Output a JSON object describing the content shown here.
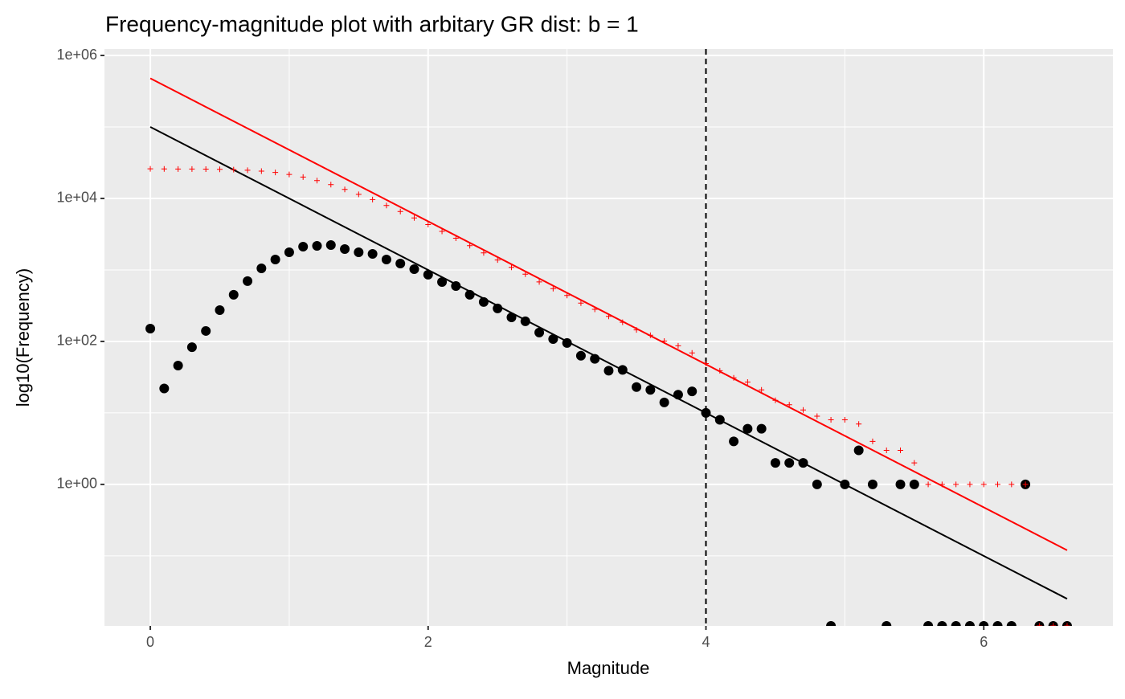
{
  "chart_data": {
    "type": "scatter",
    "title": "Frequency-magnitude plot with arbitary GR dist: b = 1",
    "xlabel": "Magnitude",
    "ylabel": "log10(Frequency)",
    "xlim": [
      -0.33,
      6.93
    ],
    "xticks": [
      0,
      2,
      4,
      6
    ],
    "xminor": [
      1,
      3,
      5
    ],
    "ylim": [
      0.0105,
      1230000
    ],
    "log_y": true,
    "yticks": [
      {
        "value": 1000000,
        "label": "1e+06"
      },
      {
        "value": 10000,
        "label": "1e+04"
      },
      {
        "value": 100,
        "label": "1e+02"
      },
      {
        "value": 1,
        "label": "1e+00"
      }
    ],
    "yminor": [
      100000,
      1000,
      10,
      0.1
    ],
    "grid": true,
    "vline": 4,
    "series": [
      {
        "mark": "point",
        "color": "#000000",
        "x": [
          0,
          0.1,
          0.2,
          0.3,
          0.4,
          0.5,
          0.6,
          0.7,
          0.8,
          0.9,
          1.0,
          1.1,
          1.2,
          1.3,
          1.4,
          1.5,
          1.6,
          1.7,
          1.8,
          1.9,
          2.0,
          2.1,
          2.2,
          2.3,
          2.4,
          2.5,
          2.6,
          2.7,
          2.8,
          2.9,
          3.0,
          3.1,
          3.2,
          3.3,
          3.4,
          3.5,
          3.6,
          3.7,
          3.8,
          3.9,
          4.0,
          4.1,
          4.2,
          4.3,
          4.4,
          4.5,
          4.6,
          4.7,
          4.8,
          4.9,
          5.0,
          5.1,
          5.2,
          5.3,
          5.4,
          5.5,
          5.6,
          5.7,
          5.8,
          5.9,
          6.0,
          6.1,
          6.2,
          6.3,
          6.4,
          6.5,
          6.6
        ],
        "values": [
          151,
          22,
          46,
          83,
          140,
          274,
          449,
          697,
          1053,
          1400,
          1766,
          2117,
          2173,
          2230,
          1960,
          1766,
          1678,
          1400,
          1230,
          1026,
          857,
          678,
          596,
          449,
          356,
          289,
          217,
          191,
          133,
          108,
          95,
          63,
          57,
          39,
          40,
          23,
          21,
          14,
          18,
          20,
          10,
          8,
          4,
          6,
          6,
          2,
          2,
          2,
          1,
          0,
          1,
          3,
          1,
          0,
          1,
          1,
          0,
          0,
          0,
          0,
          0,
          0,
          0,
          1,
          0,
          0,
          0
        ]
      },
      {
        "mark": "cross",
        "color": "#ff0000",
        "x": [
          0,
          0.1,
          0.2,
          0.3,
          0.4,
          0.5,
          0.6,
          0.7,
          0.8,
          0.9,
          1.0,
          1.1,
          1.2,
          1.3,
          1.4,
          1.5,
          1.6,
          1.7,
          1.8,
          1.9,
          2.0,
          2.1,
          2.2,
          2.3,
          2.4,
          2.5,
          2.6,
          2.7,
          2.8,
          2.9,
          3.0,
          3.1,
          3.2,
          3.3,
          3.4,
          3.5,
          3.6,
          3.7,
          3.8,
          3.9,
          4.0,
          4.1,
          4.2,
          4.3,
          4.4,
          4.5,
          4.6,
          4.7,
          4.8,
          4.9,
          5.0,
          5.1,
          5.2,
          5.3,
          5.4,
          5.5,
          5.6,
          5.7,
          5.8,
          5.9,
          6.0,
          6.1,
          6.2,
          6.3,
          6.4,
          6.5,
          6.6
        ],
        "values": [
          25974,
          25823,
          25801,
          25755,
          25672,
          25532,
          25258,
          24809,
          24112,
          23059,
          21659,
          19893,
          17776,
          15603,
          13373,
          11413,
          9647,
          7969,
          6569,
          5339,
          4313,
          3456,
          2778,
          2182,
          1733,
          1377,
          1088,
          871,
          680,
          547,
          439,
          344,
          281,
          224,
          185,
          145,
          122,
          101,
          87,
          69,
          49,
          39,
          31,
          27,
          21,
          15,
          13,
          11,
          9,
          8,
          8,
          7,
          4,
          3,
          3,
          2,
          1,
          1,
          1,
          1,
          1,
          1,
          1,
          1,
          0,
          0,
          0
        ]
      },
      {
        "mark": "line",
        "color": "#000000",
        "x": [
          0,
          6.6
        ],
        "values": [
          100000,
          0.0251
        ]
      },
      {
        "mark": "line",
        "color": "#ff0000",
        "x": [
          0,
          6.6
        ],
        "values": [
          478600,
          0.12
        ]
      }
    ]
  }
}
